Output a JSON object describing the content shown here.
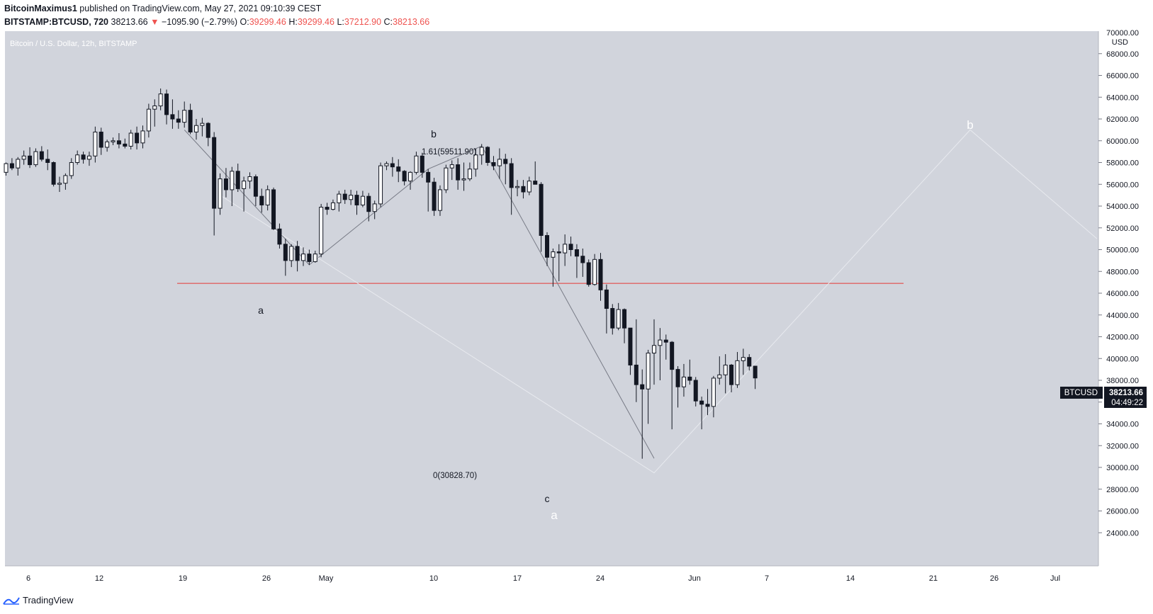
{
  "header": {
    "author": "BitcoinMaximus1",
    "published_text": "published on TradingView.com, May 27, 2021 09:10:39 CEST",
    "symbol": "BITSTAMP:BTCUSD, 720",
    "last": "38213.66",
    "change_arrow": "▼",
    "change": "−1095.90 (−2.79%)",
    "o_label": "O:",
    "o_value": "39299.46",
    "h_label": "H:",
    "h_value": "39299.46",
    "l_label": "L:",
    "l_value": "37212.90",
    "c_label": "C:",
    "c_value": "38213.66"
  },
  "legend_title": "Bitcoin / U.S. Dollar, 12h, BITSTAMP",
  "price_tag": {
    "symbol": "BTCUSD",
    "price": "38213.66",
    "countdown": "04:49:22"
  },
  "axis": {
    "top_label": "70000.00",
    "unit": "USD",
    "y_ticks": [
      "68000.00",
      "66000.00",
      "64000.00",
      "62000.00",
      "60000.00",
      "58000.00",
      "56000.00",
      "54000.00",
      "52000.00",
      "50000.00",
      "48000.00",
      "46000.00",
      "44000.00",
      "42000.00",
      "40000.00",
      "38000.00",
      "36000.00",
      "34000.00",
      "32000.00",
      "30000.00",
      "28000.00",
      "26000.00",
      "24000.00"
    ],
    "x_ticks": [
      "6",
      "12",
      "19",
      "26",
      "May",
      "10",
      "17",
      "24",
      "Jun",
      "7",
      "14",
      "21",
      "26",
      "Jul"
    ]
  },
  "annotations": {
    "wave_a": "a",
    "wave_b": "b",
    "wave_c": "c",
    "big_a": "a",
    "big_b": "b",
    "fib_top": "1.61(59511.90)",
    "fib_bottom": "0(30828.70)"
  },
  "footer": {
    "brand": "TradingView"
  },
  "colors": {
    "background": "#d1d4dc",
    "up": "#ffffff",
    "down": "#131722",
    "support": "#e53935",
    "projection": "#e8eaef"
  },
  "chart_data": {
    "type": "candlestick",
    "title": "Bitcoin / U.S. Dollar, 12h, BITSTAMP",
    "ylabel": "USD",
    "ylim": [
      22500,
      70500
    ],
    "support_level": 46900,
    "candles_ohlc": [
      [
        57100,
        58000,
        56800,
        57900
      ],
      [
        57900,
        58400,
        57300,
        57500
      ],
      [
        57500,
        58500,
        56800,
        58300
      ],
      [
        58300,
        59100,
        57800,
        58600
      ],
      [
        58600,
        59400,
        57500,
        57800
      ],
      [
        57800,
        59300,
        57600,
        59000
      ],
      [
        59000,
        59500,
        58100,
        58300
      ],
      [
        58300,
        59200,
        57300,
        58000
      ],
      [
        58000,
        58100,
        55800,
        56000
      ],
      [
        56000,
        56700,
        55300,
        56100
      ],
      [
        56100,
        57000,
        55500,
        56800
      ],
      [
        56800,
        58400,
        56500,
        58000
      ],
      [
        58000,
        59100,
        57800,
        58700
      ],
      [
        58700,
        59000,
        57900,
        58300
      ],
      [
        58300,
        59000,
        57700,
        58600
      ],
      [
        58600,
        61300,
        58000,
        60800
      ],
      [
        60800,
        61200,
        58700,
        59400
      ],
      [
        59400,
        60100,
        59000,
        59900
      ],
      [
        59900,
        60300,
        59600,
        60000
      ],
      [
        60000,
        60700,
        59300,
        59700
      ],
      [
        59700,
        60200,
        59300,
        59500
      ],
      [
        59500,
        61000,
        59200,
        60700
      ],
      [
        60700,
        61300,
        59200,
        59800
      ],
      [
        59800,
        61400,
        59300,
        60900
      ],
      [
        60900,
        63400,
        60300,
        62900
      ],
      [
        62900,
        63800,
        61300,
        63200
      ],
      [
        63200,
        64800,
        62800,
        64300
      ],
      [
        64300,
        64700,
        61500,
        62400
      ],
      [
        62400,
        63800,
        61100,
        62000
      ],
      [
        62000,
        62800,
        61100,
        61700
      ],
      [
        61700,
        63600,
        61200,
        62800
      ],
      [
        62800,
        63400,
        60600,
        60800
      ],
      [
        60800,
        62000,
        60100,
        61400
      ],
      [
        61400,
        62100,
        60400,
        61600
      ],
      [
        61600,
        61700,
        59500,
        60300
      ],
      [
        60300,
        60800,
        51300,
        53800
      ],
      [
        53800,
        57000,
        53200,
        56500
      ],
      [
        56500,
        57500,
        54800,
        55500
      ],
      [
        55500,
        57600,
        54000,
        57200
      ],
      [
        57200,
        57900,
        55300,
        55600
      ],
      [
        55600,
        56700,
        53500,
        56300
      ],
      [
        56300,
        57100,
        55600,
        56700
      ],
      [
        56700,
        56900,
        54000,
        54900
      ],
      [
        54900,
        55600,
        53400,
        54100
      ],
      [
        54100,
        55900,
        53600,
        55500
      ],
      [
        55500,
        55700,
        51800,
        51900
      ],
      [
        51900,
        52400,
        50100,
        50500
      ],
      [
        50500,
        51000,
        47600,
        49000
      ],
      [
        49000,
        50500,
        48400,
        50300
      ],
      [
        50300,
        50800,
        48000,
        49000
      ],
      [
        49000,
        50200,
        48500,
        49600
      ],
      [
        49600,
        50000,
        48600,
        48900
      ],
      [
        48900,
        49900,
        48800,
        49600
      ],
      [
        49600,
        54200,
        49300,
        53900
      ],
      [
        53900,
        54300,
        53200,
        53700
      ],
      [
        53700,
        54600,
        53600,
        54300
      ],
      [
        54300,
        55400,
        53500,
        55100
      ],
      [
        55100,
        55500,
        54200,
        54600
      ],
      [
        54600,
        55500,
        54100,
        55000
      ],
      [
        55000,
        55400,
        53200,
        54100
      ],
      [
        54100,
        55400,
        53900,
        54900
      ],
      [
        54900,
        55200,
        52600,
        53500
      ],
      [
        53500,
        54500,
        52800,
        54200
      ],
      [
        54200,
        58000,
        53900,
        57700
      ],
      [
        57700,
        58100,
        57300,
        57900
      ],
      [
        57900,
        58500,
        56700,
        57600
      ],
      [
        57600,
        58300,
        56200,
        57200
      ],
      [
        57200,
        57300,
        55900,
        56300
      ],
      [
        56300,
        57200,
        55500,
        57100
      ],
      [
        57100,
        59000,
        56900,
        58600
      ],
      [
        58600,
        58900,
        56600,
        57100
      ],
      [
        57100,
        57400,
        53500,
        56200
      ],
      [
        56200,
        56600,
        53100,
        53600
      ],
      [
        53600,
        55900,
        53100,
        55500
      ],
      [
        55500,
        57800,
        55200,
        57500
      ],
      [
        57500,
        58200,
        56400,
        57800
      ],
      [
        57800,
        58400,
        55500,
        56400
      ],
      [
        56400,
        58000,
        55400,
        56500
      ],
      [
        56500,
        58000,
        56300,
        57400
      ],
      [
        57400,
        59300,
        56700,
        58700
      ],
      [
        58700,
        59700,
        57800,
        59400
      ],
      [
        59400,
        59500,
        57700,
        58000
      ],
      [
        58000,
        58600,
        57300,
        57700
      ],
      [
        57700,
        59300,
        56500,
        58300
      ],
      [
        58300,
        58800,
        56000,
        57900
      ],
      [
        57900,
        58400,
        53200,
        55700
      ],
      [
        55700,
        56400,
        54900,
        55800
      ],
      [
        55800,
        56400,
        54700,
        55300
      ],
      [
        55300,
        56700,
        55000,
        56300
      ],
      [
        56300,
        58100,
        56000,
        56000
      ],
      [
        56000,
        56200,
        49800,
        51300
      ],
      [
        51300,
        51600,
        48500,
        49300
      ],
      [
        49300,
        50100,
        46600,
        49800
      ],
      [
        49800,
        50500,
        47100,
        49700
      ],
      [
        49700,
        51400,
        48500,
        50500
      ],
      [
        50500,
        51200,
        49400,
        50000
      ],
      [
        50000,
        50500,
        47400,
        49400
      ],
      [
        49400,
        50100,
        47500,
        48800
      ],
      [
        48800,
        49100,
        46600,
        46800
      ],
      [
        46800,
        49600,
        46700,
        49100
      ],
      [
        49100,
        49700,
        45300,
        46300
      ],
      [
        46300,
        46800,
        42300,
        44600
      ],
      [
        44600,
        45000,
        42200,
        42800
      ],
      [
        42800,
        45100,
        42600,
        44500
      ],
      [
        44500,
        44600,
        41400,
        42800
      ],
      [
        42800,
        42800,
        38500,
        39400
      ],
      [
        39400,
        43600,
        36000,
        37600
      ],
      [
        37600,
        39000,
        30800,
        37200
      ],
      [
        37200,
        40800,
        34000,
        40500
      ],
      [
        40500,
        43600,
        37600,
        41200
      ],
      [
        41200,
        42800,
        38000,
        41700
      ],
      [
        41700,
        42200,
        39900,
        41500
      ],
      [
        41500,
        41600,
        33500,
        39000
      ],
      [
        39000,
        39300,
        35500,
        37400
      ],
      [
        37400,
        39500,
        36500,
        38300
      ],
      [
        38300,
        39900,
        37600,
        38000
      ],
      [
        38000,
        38300,
        35600,
        36100
      ],
      [
        36100,
        36500,
        33500,
        35800
      ],
      [
        35800,
        37200,
        34800,
        35600
      ],
      [
        35600,
        38400,
        34600,
        38200
      ],
      [
        38200,
        40200,
        37600,
        38500
      ],
      [
        38500,
        40400,
        36800,
        39400
      ],
      [
        39400,
        39500,
        36900,
        37600
      ],
      [
        37600,
        40600,
        37300,
        39800
      ],
      [
        39800,
        40900,
        38500,
        40100
      ],
      [
        40100,
        40400,
        38900,
        39300
      ],
      [
        39300,
        39300,
        37200,
        38213.66
      ]
    ]
  }
}
